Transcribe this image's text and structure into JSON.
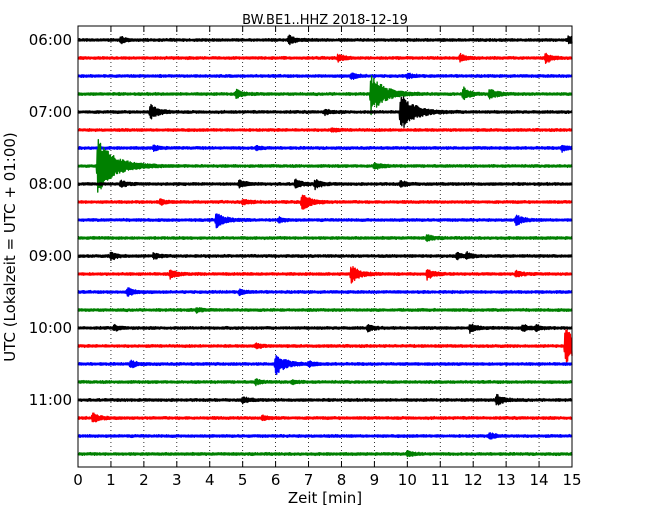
{
  "chart_data": {
    "type": "line",
    "chart_kind": "helicorder",
    "title": "BW.BE1..HHZ 2018-12-19",
    "xlabel": "Zeit  [min]",
    "ylabel": "UTC (Lokalzeit = UTC + 01:00)",
    "xlim": [
      0,
      15
    ],
    "x_ticks": [
      0,
      1,
      2,
      3,
      4,
      5,
      6,
      7,
      8,
      9,
      10,
      11,
      12,
      13,
      14,
      15
    ],
    "x_grid": "dotted",
    "start_time": "06:00",
    "trace_interval_min": 15,
    "trace_count": 24,
    "y_tick_labels": [
      "06:00",
      "07:00",
      "08:00",
      "09:00",
      "10:00",
      "11:00"
    ],
    "colors": [
      "#000000",
      "#ff0000",
      "#0000ff",
      "#008000"
    ],
    "series": [
      {
        "time": "06:00",
        "events": [
          {
            "t": 1.3,
            "amp": 0.25
          },
          {
            "t": 6.4,
            "amp": 0.35
          },
          {
            "t": 14.9,
            "amp": 0.35
          }
        ]
      },
      {
        "time": "06:15",
        "events": [
          {
            "t": 7.9,
            "amp": 0.3
          },
          {
            "t": 11.6,
            "amp": 0.3
          },
          {
            "t": 14.2,
            "amp": 0.4
          }
        ]
      },
      {
        "time": "06:30",
        "events": [
          {
            "t": 8.3,
            "amp": 0.25
          },
          {
            "t": 10.0,
            "amp": 0.2
          }
        ]
      },
      {
        "time": "06:45",
        "events": [
          {
            "t": 4.8,
            "amp": 0.35
          },
          {
            "t": 8.9,
            "amp": 1.6
          },
          {
            "t": 11.7,
            "amp": 0.5
          },
          {
            "t": 12.5,
            "amp": 0.45
          }
        ]
      },
      {
        "time": "07:00",
        "events": [
          {
            "t": 2.2,
            "amp": 0.6
          },
          {
            "t": 7.5,
            "amp": 0.2
          },
          {
            "t": 9.8,
            "amp": 1.6
          }
        ]
      },
      {
        "time": "07:15",
        "events": [
          {
            "t": 7.7,
            "amp": 0.15
          }
        ]
      },
      {
        "time": "07:30",
        "events": [
          {
            "t": 2.3,
            "amp": 0.2
          },
          {
            "t": 5.4,
            "amp": 0.15
          },
          {
            "t": 14.7,
            "amp": 0.25
          }
        ]
      },
      {
        "time": "07:45",
        "events": [
          {
            "t": 0.6,
            "amp": 2.3
          },
          {
            "t": 9.0,
            "amp": 0.3
          }
        ]
      },
      {
        "time": "08:00",
        "events": [
          {
            "t": 1.3,
            "amp": 0.25
          },
          {
            "t": 4.9,
            "amp": 0.3
          },
          {
            "t": 6.6,
            "amp": 0.35
          },
          {
            "t": 7.2,
            "amp": 0.35
          },
          {
            "t": 9.8,
            "amp": 0.25
          }
        ]
      },
      {
        "time": "08:15",
        "events": [
          {
            "t": 2.5,
            "amp": 0.2
          },
          {
            "t": 5.0,
            "amp": 0.25
          },
          {
            "t": 6.8,
            "amp": 0.7
          }
        ]
      },
      {
        "time": "08:30",
        "events": [
          {
            "t": 4.2,
            "amp": 0.65
          },
          {
            "t": 6.1,
            "amp": 0.2
          },
          {
            "t": 13.3,
            "amp": 0.4
          }
        ]
      },
      {
        "time": "08:45",
        "events": [
          {
            "t": 10.6,
            "amp": 0.25
          }
        ]
      },
      {
        "time": "09:00",
        "events": [
          {
            "t": 1.0,
            "amp": 0.3
          },
          {
            "t": 2.3,
            "amp": 0.25
          },
          {
            "t": 11.5,
            "amp": 0.25
          },
          {
            "t": 11.8,
            "amp": 0.25
          }
        ]
      },
      {
        "time": "09:15",
        "events": [
          {
            "t": 2.8,
            "amp": 0.35
          },
          {
            "t": 8.3,
            "amp": 0.7
          },
          {
            "t": 10.6,
            "amp": 0.4
          },
          {
            "t": 13.3,
            "amp": 0.25
          }
        ]
      },
      {
        "time": "09:30",
        "events": [
          {
            "t": 1.5,
            "amp": 0.35
          },
          {
            "t": 4.9,
            "amp": 0.2
          }
        ]
      },
      {
        "time": "09:45",
        "events": [
          {
            "t": 3.6,
            "amp": 0.15
          }
        ]
      },
      {
        "time": "10:00",
        "events": [
          {
            "t": 1.1,
            "amp": 0.2
          },
          {
            "t": 8.8,
            "amp": 0.25
          },
          {
            "t": 11.9,
            "amp": 0.35
          },
          {
            "t": 13.5,
            "amp": 0.3
          },
          {
            "t": 13.9,
            "amp": 0.25
          }
        ]
      },
      {
        "time": "10:15",
        "events": [
          {
            "t": 5.4,
            "amp": 0.2
          },
          {
            "t": 14.8,
            "amp": 1.5
          }
        ]
      },
      {
        "time": "10:30",
        "events": [
          {
            "t": 1.6,
            "amp": 0.3
          },
          {
            "t": 6.0,
            "amp": 0.9
          },
          {
            "t": 7.0,
            "amp": 0.2
          }
        ]
      },
      {
        "time": "10:45",
        "events": [
          {
            "t": 5.4,
            "amp": 0.2
          },
          {
            "t": 6.5,
            "amp": 0.15
          }
        ]
      },
      {
        "time": "11:00",
        "events": [
          {
            "t": 5.0,
            "amp": 0.25
          },
          {
            "t": 12.7,
            "amp": 0.45
          }
        ]
      },
      {
        "time": "11:15",
        "events": [
          {
            "t": 0.45,
            "amp": 0.35
          },
          {
            "t": 5.6,
            "amp": 0.2
          }
        ]
      },
      {
        "time": "11:30",
        "events": [
          {
            "t": 12.5,
            "amp": 0.25
          }
        ]
      },
      {
        "time": "11:45",
        "events": [
          {
            "t": 10.0,
            "amp": 0.2
          }
        ]
      }
    ]
  }
}
